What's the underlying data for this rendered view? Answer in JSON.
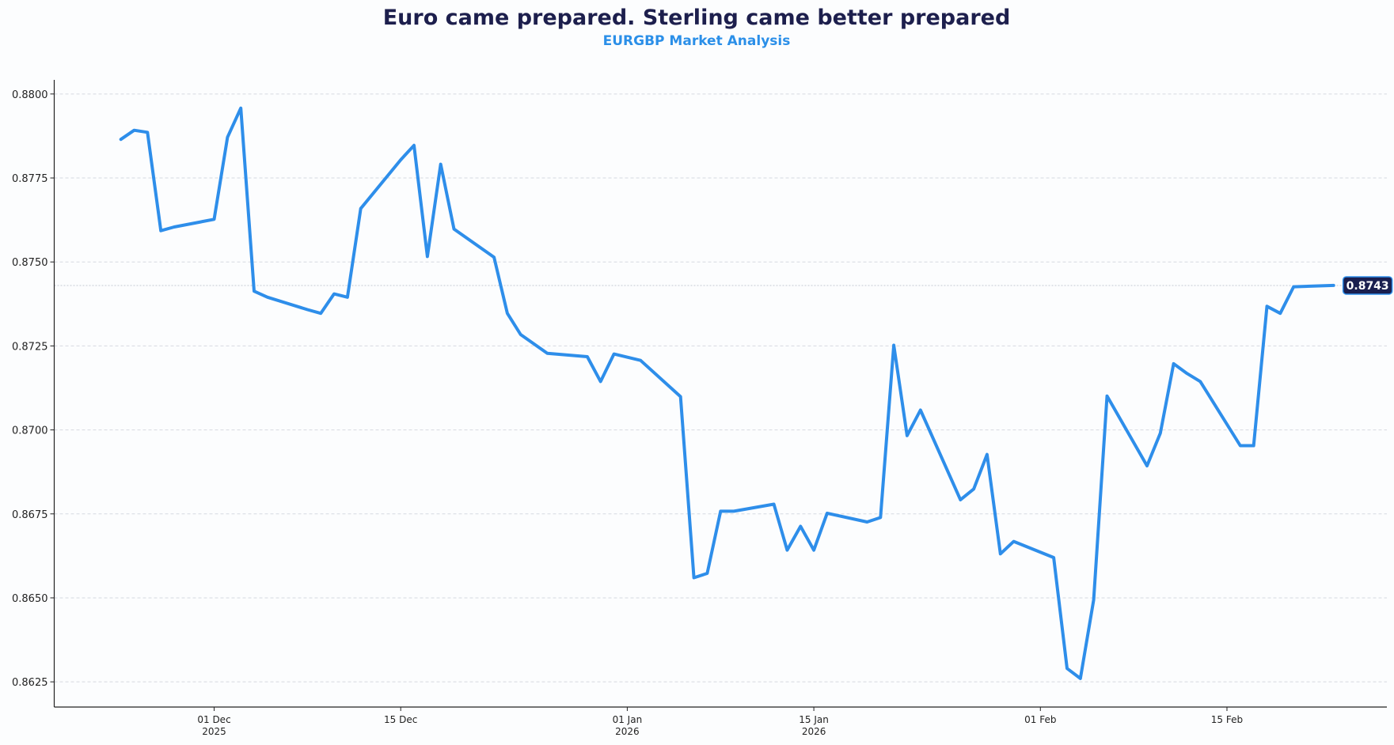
{
  "chart_data": {
    "type": "line",
    "title": "Euro came prepared. Sterling came better prepared",
    "subtitle": "EURGBP Market Analysis",
    "xlabel": "",
    "ylabel": "",
    "ylim": [
      0.86175,
      0.88042
    ],
    "xlim": [
      "2025-11-19",
      "2026-02-27"
    ],
    "grid": true,
    "yticks": [
      "0.8625",
      "0.8650",
      "0.8675",
      "0.8700",
      "0.8725",
      "0.8750",
      "0.8775",
      "0.8800"
    ],
    "xticks": [
      {
        "date": "2025-12-01",
        "label": "01 Dec",
        "sub": "2025"
      },
      {
        "date": "2025-12-15",
        "label": "15 Dec",
        "sub": ""
      },
      {
        "date": "2026-01-01",
        "label": "01 Jan",
        "sub": "2026"
      },
      {
        "date": "2026-01-15",
        "label": "15 Jan",
        "sub": "2026"
      },
      {
        "date": "2026-02-01",
        "label": "01 Feb",
        "sub": ""
      },
      {
        "date": "2026-02-15",
        "label": "15 Feb",
        "sub": ""
      }
    ],
    "last_value_label": "0.8743",
    "colors": {
      "line": "#2e8eea",
      "title": "#1d1f4d",
      "subtitle": "#2b8fe8",
      "label_bg": "#1a1f4f"
    },
    "x": [
      "2025-11-24",
      "2025-11-25",
      "2025-11-26",
      "2025-11-27",
      "2025-11-28",
      "2025-12-01",
      "2025-12-02",
      "2025-12-03",
      "2025-12-04",
      "2025-12-05",
      "2025-12-08",
      "2025-12-09",
      "2025-12-10",
      "2025-12-11",
      "2025-12-12",
      "2025-12-15",
      "2025-12-16",
      "2025-12-17",
      "2025-12-18",
      "2025-12-19",
      "2025-12-22",
      "2025-12-23",
      "2025-12-24",
      "2025-12-26",
      "2025-12-29",
      "2025-12-30",
      "2025-12-31",
      "2026-01-02",
      "2026-01-05",
      "2026-01-06",
      "2026-01-07",
      "2026-01-08",
      "2026-01-09",
      "2026-01-12",
      "2026-01-13",
      "2026-01-14",
      "2026-01-15",
      "2026-01-16",
      "2026-01-19",
      "2026-01-20",
      "2026-01-21",
      "2026-01-22",
      "2026-01-23",
      "2026-01-26",
      "2026-01-27",
      "2026-01-28",
      "2026-01-29",
      "2026-01-30",
      "2026-02-02",
      "2026-02-03",
      "2026-02-04",
      "2026-02-05",
      "2026-02-06",
      "2026-02-09",
      "2026-02-10",
      "2026-02-11",
      "2026-02-12",
      "2026-02-13",
      "2026-02-16",
      "2026-02-17",
      "2026-02-18",
      "2026-02-19",
      "2026-02-20",
      "2026-02-23"
    ],
    "values": [
      0.87865,
      0.87892,
      0.87886,
      0.87593,
      0.87604,
      0.87627,
      0.87871,
      0.87958,
      0.87413,
      0.87395,
      0.87358,
      0.87347,
      0.87405,
      0.87395,
      0.87659,
      0.87804,
      0.87847,
      0.87516,
      0.87791,
      0.87598,
      0.87514,
      0.87347,
      0.87284,
      0.87228,
      0.87218,
      0.87144,
      0.87226,
      0.87207,
      0.87099,
      0.8656,
      0.86573,
      0.86758,
      0.86758,
      0.86779,
      0.86642,
      0.86713,
      0.86642,
      0.86752,
      0.86726,
      0.86739,
      0.87252,
      0.86983,
      0.87059,
      0.86792,
      0.86824,
      0.86927,
      0.86631,
      0.86668,
      0.8662,
      0.8629,
      0.8626,
      0.86494,
      0.87101,
      0.86893,
      0.8699,
      0.87197,
      0.87168,
      0.87144,
      0.86953,
      0.86953,
      0.87368,
      0.87347,
      0.87426,
      0.8743
    ]
  }
}
